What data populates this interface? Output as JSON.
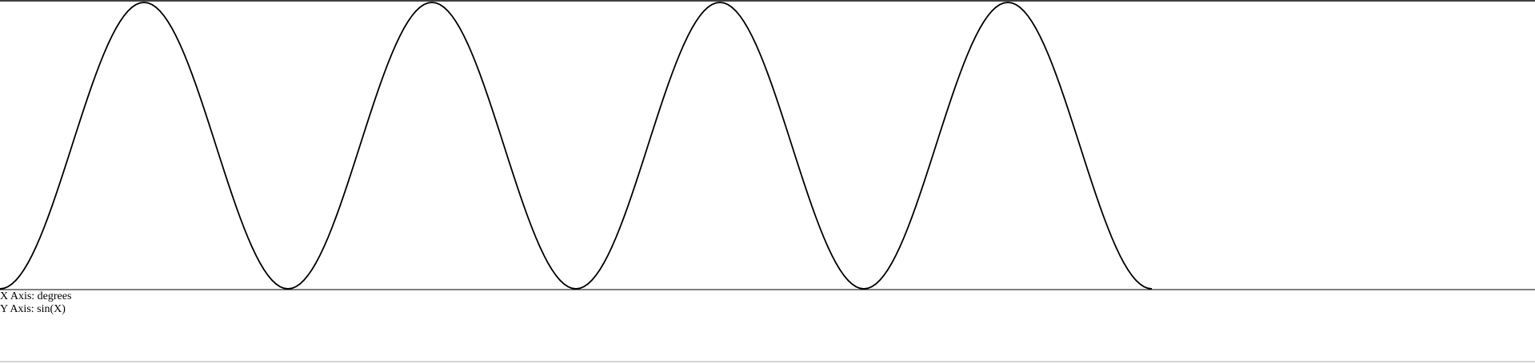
{
  "chart_data": {
    "type": "line",
    "function": "sin(X)",
    "x_unit": "degrees",
    "xlim": [
      0,
      1440
    ],
    "ylim": [
      -1,
      1
    ],
    "series": [
      {
        "x_start": 0,
        "x_end": 1440,
        "x_step": 5,
        "formula": "sin(x - 90)"
      }
    ],
    "line_color": "#000000",
    "grid": false,
    "legend": "none"
  },
  "labels": {
    "x_axis": "X Axis: degrees",
    "y_axis": "Y Axis: sin(X)"
  }
}
